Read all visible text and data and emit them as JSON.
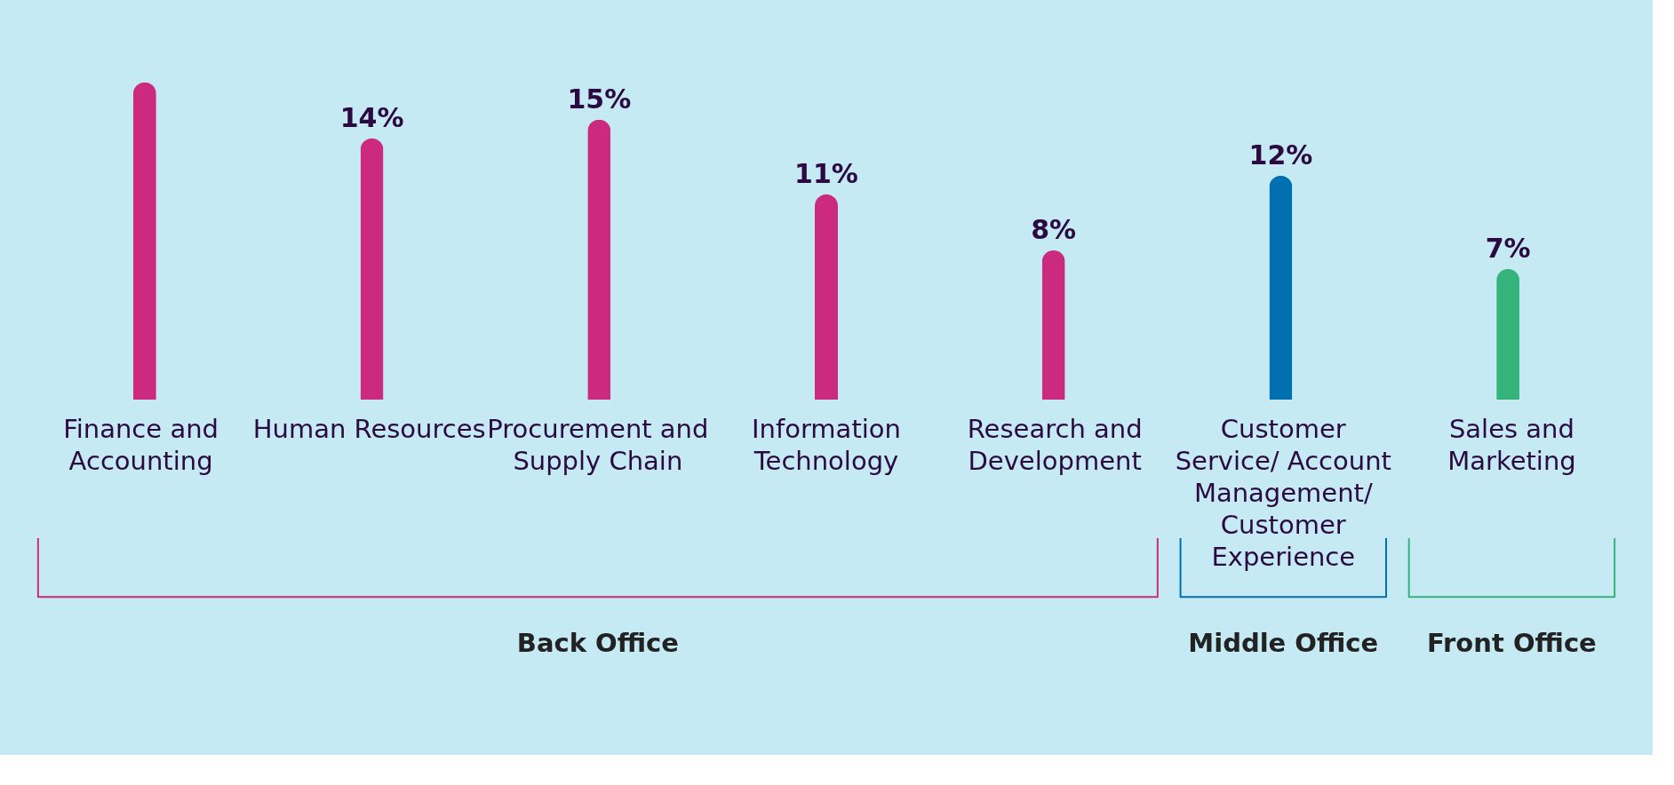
{
  "chart_data": {
    "type": "bar",
    "categories": [
      "Finance and Accounting",
      "Human Resources",
      "Procurement and Supply Chain",
      "Information Technology",
      "Research and Development",
      "Customer Service/ Account Management/ Customer Experience",
      "Sales and Marketing"
    ],
    "values": [
      17,
      14,
      15,
      11,
      8,
      12,
      7
    ],
    "value_labels": [
      null,
      "14%",
      "15%",
      "11%",
      "8%",
      "12%",
      "7%"
    ],
    "colors": [
      "#cc2a7e",
      "#cc2a7e",
      "#cc2a7e",
      "#cc2a7e",
      "#cc2a7e",
      "#0070b0",
      "#34b47a"
    ],
    "annotations": [
      "Back Office",
      "Middle Office",
      "Front Office"
    ]
  }
}
